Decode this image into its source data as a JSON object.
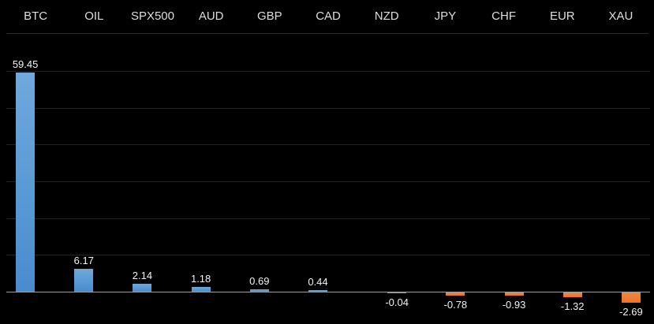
{
  "chart_data": {
    "type": "bar",
    "title": "",
    "orientation": "vertical",
    "category_axis_position": "top",
    "categories": [
      "BTC",
      "OIL",
      "SPX500",
      "AUD",
      "GBP",
      "CAD",
      "NZD",
      "JPY",
      "CHF",
      "EUR",
      "XAU"
    ],
    "values": [
      59.45,
      6.17,
      2.14,
      1.18,
      0.69,
      0.44,
      -0.04,
      -0.78,
      -0.93,
      -1.32,
      -2.69
    ],
    "data_labels": [
      "59.45",
      "6.17",
      "2.14",
      "1.18",
      "0.69",
      "0.44",
      "-0.04",
      "-0.78",
      "-0.93",
      "-1.32",
      "-2.69"
    ],
    "ylim": [
      -10,
      60
    ],
    "gridlines": [
      0,
      10,
      20,
      30,
      40,
      50,
      60
    ],
    "gridline_step": 10,
    "grid": true,
    "legend": "none",
    "colors": {
      "positive_bar": "#5b9bd5",
      "negative_bar": "#ed7d31",
      "background": "#000000",
      "gridline": "#232323",
      "zero_axis": "#9e9e9e",
      "header_text": "#dedede",
      "value_text": "#f2f2f2",
      "header_divider": "#2c2c2c"
    }
  }
}
